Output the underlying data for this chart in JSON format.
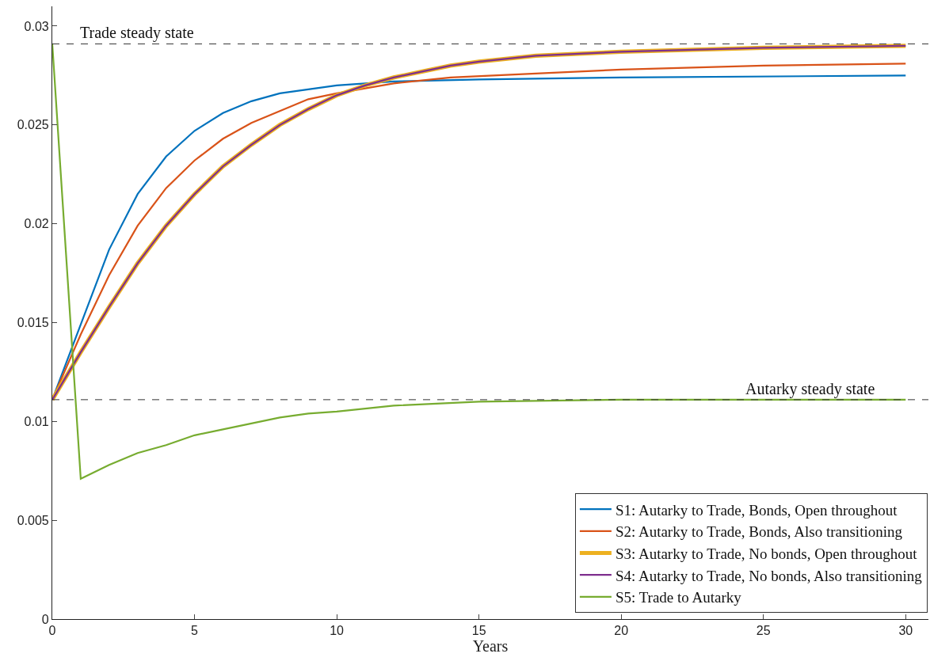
{
  "chart_data": {
    "type": "line",
    "xlabel": "Years",
    "xlim": [
      0,
      30.8
    ],
    "xticks": [
      0,
      5,
      10,
      15,
      20,
      25,
      30
    ],
    "ylim": [
      0,
      0.031
    ],
    "yticks": [
      0,
      0.005,
      0.01,
      0.015,
      0.02,
      0.025,
      0.03
    ],
    "legend": "bottom right",
    "marker": "none",
    "line_style": "solid",
    "ref_lines": [
      {
        "axis": "y",
        "value": 0.0291,
        "label": "Trade steady state",
        "color": "#333333",
        "line_style": "dashed"
      },
      {
        "axis": "y",
        "value": 0.0111,
        "label": "Autarky steady state",
        "color": "#333333",
        "line_style": "dashed"
      }
    ],
    "series": [
      {
        "name": "S1: Autarky to Trade, Bonds, Open throughout",
        "color": "#0072bd",
        "x": [
          0,
          1,
          2,
          3,
          4,
          5,
          6,
          7,
          8,
          9,
          10,
          11,
          12,
          15,
          20,
          30
        ],
        "values": [
          0.0111,
          0.0149,
          0.0187,
          0.0215,
          0.0234,
          0.0247,
          0.0256,
          0.0262,
          0.0266,
          0.0268,
          0.027,
          0.0271,
          0.0272,
          0.0273,
          0.0274,
          0.0275
        ]
      },
      {
        "name": "S2: Autarky to Trade, Bonds, Also transitioning",
        "color": "#d95319",
        "x": [
          0,
          1,
          2,
          3,
          4,
          5,
          6,
          7,
          8,
          9,
          10,
          12,
          14,
          17,
          20,
          25,
          30
        ],
        "values": [
          0.0111,
          0.0144,
          0.0174,
          0.0199,
          0.0218,
          0.0232,
          0.0243,
          0.0251,
          0.0257,
          0.0263,
          0.0266,
          0.0271,
          0.0274,
          0.0276,
          0.0278,
          0.028,
          0.0281
        ]
      },
      {
        "name": "S3: Autarky to Trade, No bonds, Open throughout",
        "color": "#edb120",
        "x": [
          0,
          1,
          2,
          3,
          4,
          5,
          6,
          7,
          8,
          9,
          10,
          11,
          12,
          13,
          14,
          15,
          17,
          20,
          25,
          30
        ],
        "values": [
          0.0111,
          0.0135,
          0.0158,
          0.018,
          0.0199,
          0.0215,
          0.0229,
          0.024,
          0.025,
          0.0258,
          0.0265,
          0.027,
          0.0274,
          0.0277,
          0.028,
          0.0282,
          0.0285,
          0.0287,
          0.0289,
          0.029
        ]
      },
      {
        "name": "S4: Autarky to Trade, No bonds, Also transitioning",
        "color": "#7e2f8e",
        "x": [
          0,
          1,
          2,
          3,
          4,
          5,
          6,
          7,
          8,
          9,
          10,
          11,
          12,
          13,
          14,
          15,
          17,
          20,
          25,
          30
        ],
        "values": [
          0.0111,
          0.0135,
          0.0158,
          0.018,
          0.0199,
          0.0215,
          0.0229,
          0.024,
          0.025,
          0.0258,
          0.0265,
          0.027,
          0.0274,
          0.0277,
          0.028,
          0.0282,
          0.0285,
          0.0287,
          0.0289,
          0.029
        ]
      },
      {
        "name": "S5: Trade to Autarky",
        "color": "#77ac30",
        "x": [
          0,
          1,
          2,
          3,
          4,
          5,
          6,
          7,
          8,
          9,
          10,
          12,
          15,
          20,
          25,
          30
        ],
        "values": [
          0.0291,
          0.0071,
          0.0078,
          0.0084,
          0.0088,
          0.0093,
          0.0096,
          0.0099,
          0.0102,
          0.0104,
          0.0105,
          0.0108,
          0.011,
          0.0111,
          0.0111,
          0.0111
        ]
      }
    ]
  }
}
